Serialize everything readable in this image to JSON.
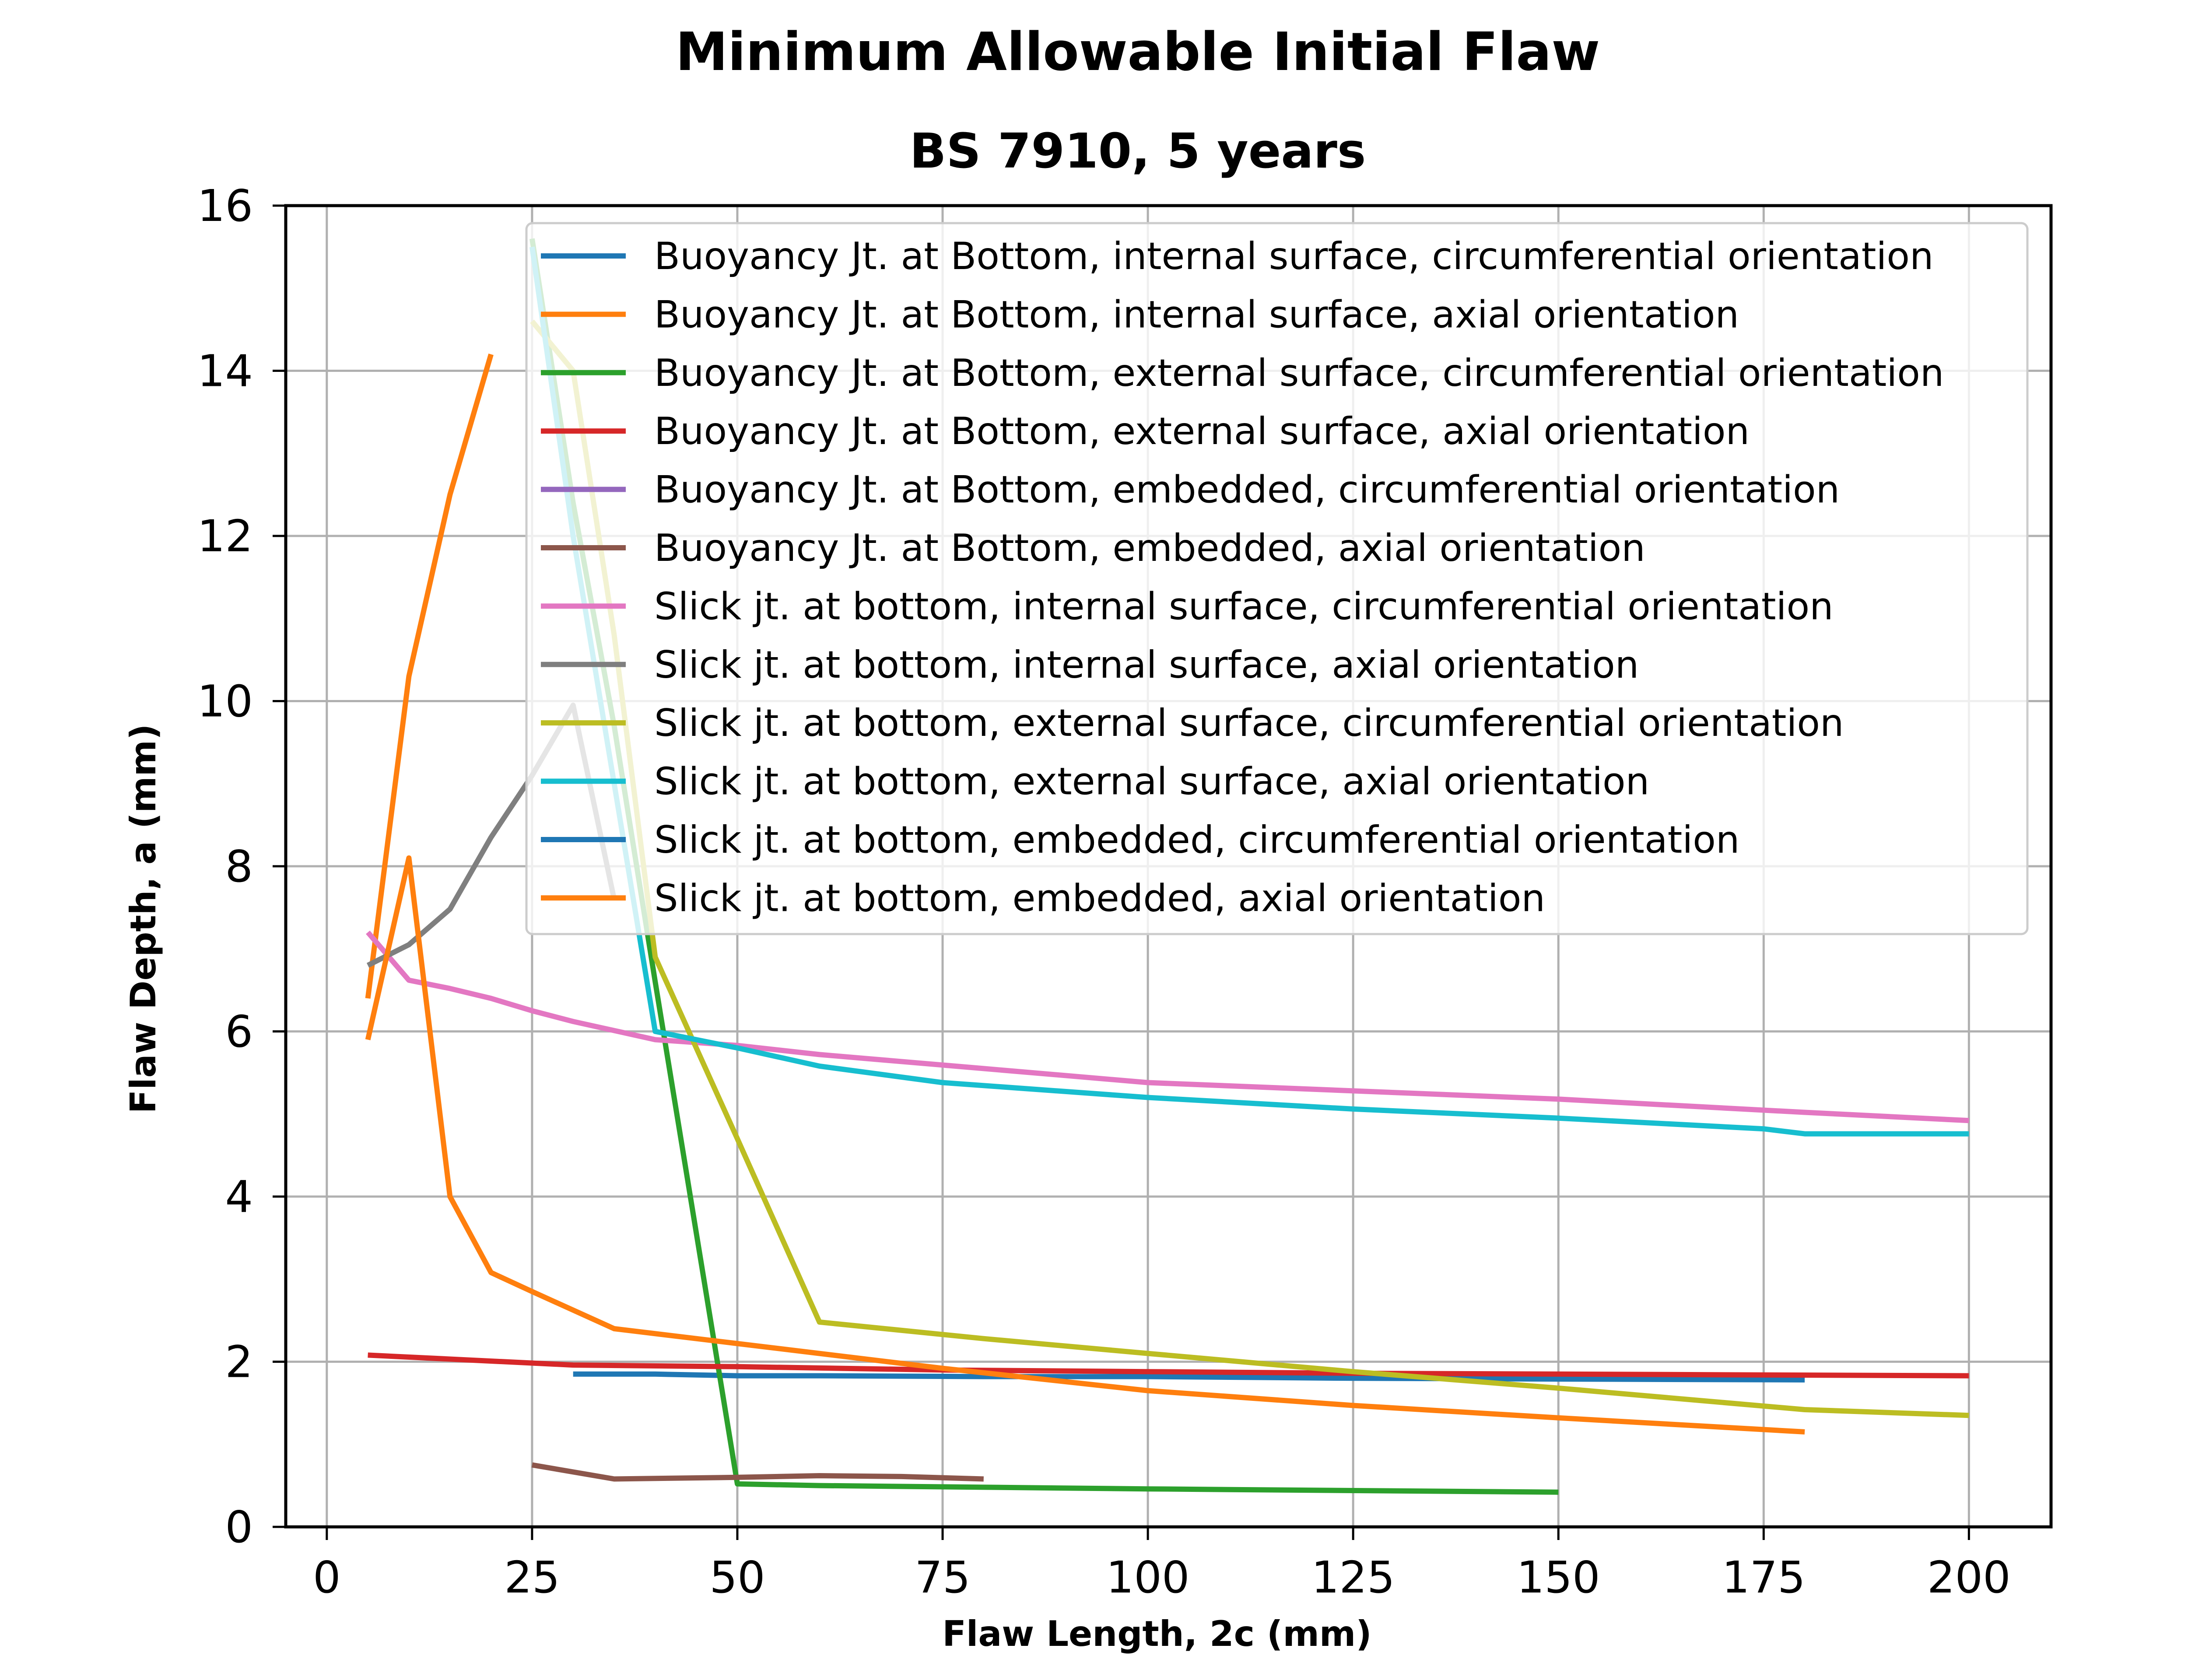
{
  "chart_data": {
    "type": "line",
    "title": "Minimum Allowable Initial Flaw",
    "subtitle": "BS 7910, 5 years",
    "xlabel": "Flaw Length, 2c (mm)",
    "ylabel": "Flaw Depth, a (mm)",
    "xlim": [
      -5,
      210
    ],
    "ylim": [
      0,
      16
    ],
    "xticks": [
      0,
      25,
      50,
      75,
      100,
      125,
      150,
      175,
      200
    ],
    "yticks": [
      0,
      2,
      4,
      6,
      8,
      10,
      12,
      14,
      16
    ],
    "grid": true,
    "legend_position": "upper right",
    "series": [
      {
        "name": "Buoyancy Jt. at Bottom, internal surface, circumferential orientation",
        "color": "#1f77b4",
        "x": [
          30,
          40,
          50,
          60,
          80,
          100,
          125,
          150,
          180
        ],
        "y": [
          1.85,
          1.85,
          1.83,
          1.83,
          1.82,
          1.82,
          1.8,
          1.79,
          1.78
        ]
      },
      {
        "name": "Buoyancy Jt. at Bottom, internal surface, axial orientation",
        "color": "#ff7f0e",
        "x": [
          5,
          10,
          15,
          20
        ],
        "y": [
          6.4,
          10.3,
          12.5,
          14.2
        ]
      },
      {
        "name": "Buoyancy Jt. at Bottom, external surface, circumferential orientation",
        "color": "#2ca02c",
        "x": [
          25,
          30,
          35,
          40,
          50,
          60,
          80,
          100,
          150
        ],
        "y": [
          15.6,
          12.4,
          9.7,
          6.6,
          0.52,
          0.5,
          0.48,
          0.46,
          0.42
        ]
      },
      {
        "name": "Buoyancy Jt. at Bottom, external surface, axial orientation",
        "color": "#d62728",
        "x": [
          5,
          30,
          50,
          75,
          100,
          125,
          150,
          175,
          200
        ],
        "y": [
          2.08,
          1.96,
          1.94,
          1.9,
          1.88,
          1.86,
          1.85,
          1.84,
          1.83
        ]
      },
      {
        "name": "Buoyancy Jt. at Bottom, embedded, circumferential orientation",
        "color": "#9467bd",
        "x": [],
        "y": []
      },
      {
        "name": "Buoyancy Jt. at Bottom, embedded, axial orientation",
        "color": "#8c564b",
        "x": [
          25,
          35,
          50,
          60,
          70,
          80
        ],
        "y": [
          0.75,
          0.58,
          0.6,
          0.62,
          0.61,
          0.58
        ]
      },
      {
        "name": "Slick jt. at bottom, internal surface, circumferential orientation",
        "color": "#e377c2",
        "x": [
          5,
          10,
          15,
          20,
          25,
          30,
          40,
          50,
          60,
          80,
          100,
          150,
          180,
          200
        ],
        "y": [
          7.2,
          6.62,
          6.52,
          6.4,
          6.25,
          6.12,
          5.9,
          5.83,
          5.72,
          5.55,
          5.38,
          5.18,
          5.02,
          4.92
        ]
      },
      {
        "name": "Slick jt. at bottom, internal surface, axial orientation",
        "color": "#7f7f7f",
        "x": [
          5,
          10,
          15,
          20,
          25,
          30,
          35
        ],
        "y": [
          6.8,
          7.05,
          7.48,
          8.35,
          9.1,
          9.95,
          7.6
        ]
      },
      {
        "name": "Slick jt. at bottom, external surface, circumferential orientation",
        "color": "#bcbd22",
        "x": [
          25,
          30,
          35,
          40,
          50,
          60,
          80,
          100,
          125,
          150,
          180,
          200
        ],
        "y": [
          14.6,
          14.0,
          10.8,
          6.9,
          4.7,
          2.48,
          2.28,
          2.1,
          1.88,
          1.68,
          1.42,
          1.35
        ]
      },
      {
        "name": "Slick jt. at bottom, external surface, axial orientation",
        "color": "#17becf",
        "x": [
          25,
          30,
          35,
          40,
          50,
          60,
          75,
          100,
          125,
          150,
          175,
          180,
          200
        ],
        "y": [
          15.5,
          12.0,
          9.0,
          6.0,
          5.8,
          5.58,
          5.38,
          5.2,
          5.06,
          4.95,
          4.82,
          4.76,
          4.76
        ]
      },
      {
        "name": "Slick jt. at bottom, embedded, circumferential orientation",
        "color": "#1f77b4",
        "x": [],
        "y": []
      },
      {
        "name": "Slick jt. at bottom, embedded, axial orientation",
        "color": "#ff7f0e",
        "x": [
          5,
          10,
          15,
          20,
          25,
          35,
          50,
          75,
          100,
          125,
          150,
          180
        ],
        "y": [
          5.9,
          8.1,
          4.0,
          3.08,
          2.85,
          2.4,
          2.22,
          1.92,
          1.65,
          1.47,
          1.32,
          1.15
        ]
      }
    ]
  }
}
